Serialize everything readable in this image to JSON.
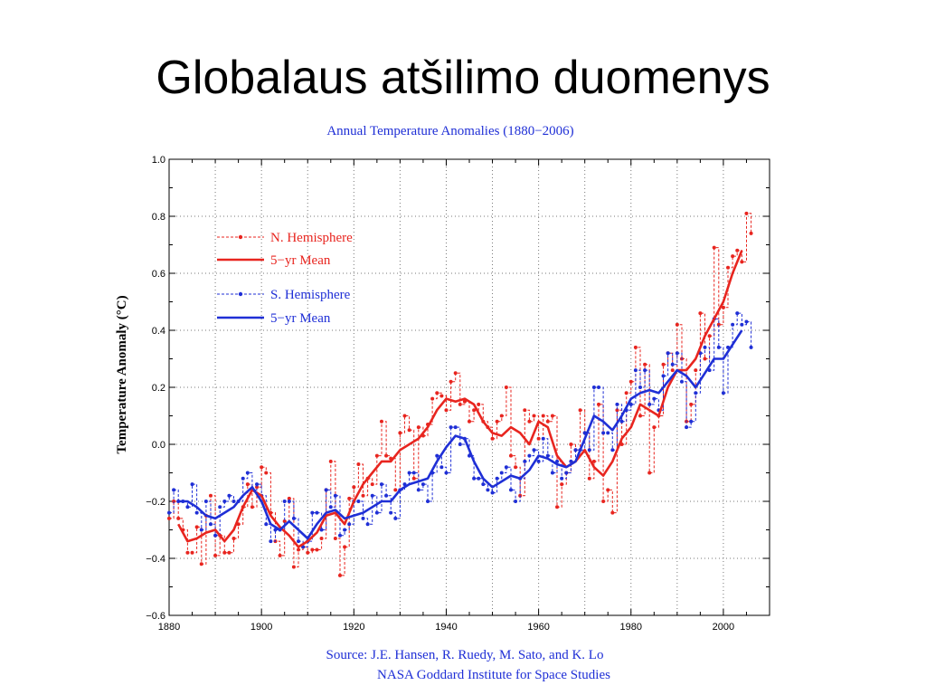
{
  "slide": {
    "title": "Globalaus atšilimo duomenys"
  },
  "chart_data": {
    "type": "line",
    "title": "Annual Temperature Anomalies (1880−2006)",
    "xlabel": "",
    "ylabel": "Temperature Anomaly (°C)",
    "xlim": [
      1880,
      2010
    ],
    "ylim": [
      -0.6,
      1.0
    ],
    "x_ticks": [
      1880,
      1900,
      1920,
      1940,
      1960,
      1980,
      2000
    ],
    "y_ticks": [
      -0.6,
      -0.4,
      -0.2,
      0.0,
      0.2,
      0.4,
      0.6,
      0.8,
      1.0
    ],
    "y_tick_labels": [
      "−0.6",
      "−0.4",
      "−0.2",
      "0.0",
      "0.2",
      "0.4",
      "0.6",
      "0.8",
      "1.0"
    ],
    "x_tick_labels": [
      "1880",
      "1900",
      "1920",
      "1940",
      "1960",
      "1980",
      "2000"
    ],
    "grid": true,
    "legend_position": "top-left",
    "colors": {
      "north": "#e8251f",
      "south": "#1f2fd6"
    },
    "source_line1": "Source: J.E. Hansen, R. Ruedy, M. Sato, and K. Lo",
    "source_line2": "NASA Goddard Institute for Space Studies",
    "series": [
      {
        "name": "N. Hemisphere",
        "style": "dashed-dots",
        "color": "#e8251f",
        "x": [
          1880,
          1881,
          1882,
          1883,
          1884,
          1885,
          1886,
          1887,
          1888,
          1889,
          1890,
          1891,
          1892,
          1893,
          1894,
          1895,
          1896,
          1897,
          1898,
          1899,
          1900,
          1901,
          1902,
          1903,
          1904,
          1905,
          1906,
          1907,
          1908,
          1909,
          1910,
          1911,
          1912,
          1913,
          1914,
          1915,
          1916,
          1917,
          1918,
          1919,
          1920,
          1921,
          1922,
          1923,
          1924,
          1925,
          1926,
          1927,
          1928,
          1929,
          1930,
          1931,
          1932,
          1933,
          1934,
          1935,
          1936,
          1937,
          1938,
          1939,
          1940,
          1941,
          1942,
          1943,
          1944,
          1945,
          1946,
          1947,
          1948,
          1949,
          1950,
          1951,
          1952,
          1953,
          1954,
          1955,
          1956,
          1957,
          1958,
          1959,
          1960,
          1961,
          1962,
          1963,
          1964,
          1965,
          1966,
          1967,
          1968,
          1969,
          1970,
          1971,
          1972,
          1973,
          1974,
          1975,
          1976,
          1977,
          1978,
          1979,
          1980,
          1981,
          1982,
          1983,
          1984,
          1985,
          1986,
          1987,
          1988,
          1989,
          1990,
          1991,
          1992,
          1993,
          1994,
          1995,
          1996,
          1997,
          1998,
          1999,
          2000,
          2001,
          2002,
          2003,
          2004,
          2005,
          2006
        ],
        "values": [
          -0.26,
          -0.2,
          -0.26,
          -0.3,
          -0.38,
          -0.38,
          -0.29,
          -0.42,
          -0.25,
          -0.18,
          -0.39,
          -0.32,
          -0.38,
          -0.38,
          -0.33,
          -0.28,
          -0.22,
          -0.14,
          -0.22,
          -0.15,
          -0.08,
          -0.1,
          -0.24,
          -0.34,
          -0.39,
          -0.27,
          -0.19,
          -0.43,
          -0.37,
          -0.36,
          -0.38,
          -0.37,
          -0.37,
          -0.33,
          -0.16,
          -0.06,
          -0.33,
          -0.46,
          -0.36,
          -0.19,
          -0.15,
          -0.07,
          -0.18,
          -0.12,
          -0.14,
          -0.04,
          0.08,
          -0.04,
          -0.05,
          -0.16,
          0.04,
          0.1,
          0.05,
          -0.12,
          0.06,
          0.03,
          0.07,
          0.16,
          0.18,
          0.17,
          0.12,
          0.22,
          0.25,
          0.14,
          0.15,
          0.08,
          0.12,
          0.14,
          0.08,
          0.06,
          0.02,
          0.08,
          0.1,
          0.2,
          -0.04,
          -0.08,
          -0.18,
          0.12,
          0.08,
          0.1,
          0.02,
          0.1,
          0.08,
          0.1,
          -0.22,
          -0.14,
          -0.1,
          0.0,
          -0.02,
          0.12,
          0.04,
          -0.12,
          -0.06,
          0.14,
          -0.2,
          -0.16,
          -0.24,
          0.12,
          0.0,
          0.18,
          0.22,
          0.34,
          0.1,
          0.28,
          -0.1,
          0.06,
          0.1,
          0.28,
          0.32,
          0.26,
          0.42,
          0.3,
          0.08,
          0.14,
          0.26,
          0.46,
          0.3,
          0.38,
          0.69,
          0.42,
          0.48,
          0.62,
          0.66,
          0.68,
          0.64,
          0.81,
          0.74
        ]
      },
      {
        "name": "5−yr Mean",
        "style": "solid",
        "color": "#e8251f",
        "x": [
          1882,
          1884,
          1886,
          1888,
          1890,
          1892,
          1894,
          1896,
          1898,
          1900,
          1902,
          1904,
          1906,
          1908,
          1910,
          1912,
          1914,
          1916,
          1918,
          1920,
          1922,
          1924,
          1926,
          1928,
          1930,
          1932,
          1934,
          1936,
          1938,
          1940,
          1942,
          1944,
          1946,
          1948,
          1950,
          1952,
          1954,
          1956,
          1958,
          1960,
          1962,
          1964,
          1966,
          1968,
          1970,
          1972,
          1974,
          1976,
          1978,
          1980,
          1982,
          1984,
          1986,
          1988,
          1990,
          1992,
          1994,
          1996,
          1998,
          2000,
          2002,
          2004
        ],
        "values": [
          -0.28,
          -0.34,
          -0.33,
          -0.31,
          -0.3,
          -0.34,
          -0.3,
          -0.22,
          -0.16,
          -0.18,
          -0.25,
          -0.29,
          -0.32,
          -0.36,
          -0.34,
          -0.31,
          -0.25,
          -0.24,
          -0.28,
          -0.2,
          -0.14,
          -0.1,
          -0.06,
          -0.06,
          -0.02,
          -0.0,
          0.02,
          0.06,
          0.12,
          0.16,
          0.15,
          0.16,
          0.14,
          0.08,
          0.04,
          0.03,
          0.06,
          0.04,
          0.0,
          0.08,
          0.06,
          -0.04,
          -0.08,
          -0.06,
          -0.02,
          -0.08,
          -0.11,
          -0.06,
          0.02,
          0.06,
          0.14,
          0.12,
          0.1,
          0.2,
          0.26,
          0.26,
          0.3,
          0.38,
          0.44,
          0.5,
          0.6,
          0.68
        ]
      },
      {
        "name": "S. Hemisphere",
        "style": "dashed-dots",
        "color": "#1f2fd6",
        "x": [
          1880,
          1881,
          1882,
          1883,
          1884,
          1885,
          1886,
          1887,
          1888,
          1889,
          1890,
          1891,
          1892,
          1893,
          1894,
          1895,
          1896,
          1897,
          1898,
          1899,
          1900,
          1901,
          1902,
          1903,
          1904,
          1905,
          1906,
          1907,
          1908,
          1909,
          1910,
          1911,
          1912,
          1913,
          1914,
          1915,
          1916,
          1917,
          1918,
          1919,
          1920,
          1921,
          1922,
          1923,
          1924,
          1925,
          1926,
          1927,
          1928,
          1929,
          1930,
          1931,
          1932,
          1933,
          1934,
          1935,
          1936,
          1937,
          1938,
          1939,
          1940,
          1941,
          1942,
          1943,
          1944,
          1945,
          1946,
          1947,
          1948,
          1949,
          1950,
          1951,
          1952,
          1953,
          1954,
          1955,
          1956,
          1957,
          1958,
          1959,
          1960,
          1961,
          1962,
          1963,
          1964,
          1965,
          1966,
          1967,
          1968,
          1969,
          1970,
          1971,
          1972,
          1973,
          1974,
          1975,
          1976,
          1977,
          1978,
          1979,
          1980,
          1981,
          1982,
          1983,
          1984,
          1985,
          1986,
          1987,
          1988,
          1989,
          1990,
          1991,
          1992,
          1993,
          1994,
          1995,
          1996,
          1997,
          1998,
          1999,
          2000,
          2001,
          2002,
          2003,
          2004,
          2005,
          2006
        ],
        "values": [
          -0.24,
          -0.16,
          -0.2,
          -0.2,
          -0.22,
          -0.14,
          -0.24,
          -0.3,
          -0.2,
          -0.28,
          -0.32,
          -0.22,
          -0.2,
          -0.18,
          -0.2,
          -0.2,
          -0.12,
          -0.1,
          -0.16,
          -0.14,
          -0.18,
          -0.28,
          -0.34,
          -0.3,
          -0.3,
          -0.2,
          -0.2,
          -0.26,
          -0.34,
          -0.36,
          -0.34,
          -0.24,
          -0.24,
          -0.3,
          -0.16,
          -0.22,
          -0.18,
          -0.32,
          -0.3,
          -0.28,
          -0.2,
          -0.2,
          -0.26,
          -0.28,
          -0.18,
          -0.24,
          -0.14,
          -0.18,
          -0.24,
          -0.26,
          -0.16,
          -0.14,
          -0.1,
          -0.1,
          -0.16,
          -0.14,
          -0.2,
          -0.1,
          -0.04,
          -0.08,
          -0.1,
          0.06,
          0.06,
          0.0,
          0.02,
          -0.04,
          -0.12,
          -0.12,
          -0.14,
          -0.16,
          -0.17,
          -0.12,
          -0.1,
          -0.08,
          -0.16,
          -0.2,
          -0.12,
          -0.06,
          -0.04,
          -0.02,
          -0.06,
          0.02,
          -0.04,
          -0.1,
          -0.06,
          -0.12,
          -0.1,
          -0.06,
          -0.02,
          -0.02,
          0.04,
          -0.02,
          0.2,
          0.2,
          0.04,
          0.04,
          -0.02,
          0.14,
          0.08,
          0.12,
          0.14,
          0.26,
          0.2,
          0.26,
          0.14,
          0.16,
          0.12,
          0.24,
          0.32,
          0.28,
          0.32,
          0.22,
          0.06,
          0.08,
          0.18,
          0.32,
          0.34,
          0.26,
          0.44,
          0.34,
          0.18,
          0.34,
          0.42,
          0.46,
          0.42,
          0.43,
          0.34
        ]
      },
      {
        "name": "5−yr Mean",
        "style": "solid",
        "color": "#1f2fd6",
        "x": [
          1882,
          1884,
          1886,
          1888,
          1890,
          1892,
          1894,
          1896,
          1898,
          1900,
          1902,
          1904,
          1906,
          1908,
          1910,
          1912,
          1914,
          1916,
          1918,
          1920,
          1922,
          1924,
          1926,
          1928,
          1930,
          1932,
          1934,
          1936,
          1938,
          1940,
          1942,
          1944,
          1946,
          1948,
          1950,
          1952,
          1954,
          1956,
          1958,
          1960,
          1962,
          1964,
          1966,
          1968,
          1970,
          1972,
          1974,
          1976,
          1978,
          1980,
          1982,
          1984,
          1986,
          1988,
          1990,
          1992,
          1994,
          1996,
          1998,
          2000,
          2002,
          2004
        ],
        "values": [
          -0.2,
          -0.2,
          -0.22,
          -0.25,
          -0.26,
          -0.24,
          -0.22,
          -0.18,
          -0.15,
          -0.2,
          -0.28,
          -0.3,
          -0.27,
          -0.3,
          -0.33,
          -0.28,
          -0.24,
          -0.23,
          -0.26,
          -0.25,
          -0.24,
          -0.22,
          -0.2,
          -0.2,
          -0.16,
          -0.14,
          -0.13,
          -0.12,
          -0.06,
          -0.01,
          0.03,
          0.02,
          -0.06,
          -0.12,
          -0.15,
          -0.13,
          -0.11,
          -0.12,
          -0.09,
          -0.04,
          -0.05,
          -0.07,
          -0.08,
          -0.06,
          0.02,
          0.1,
          0.08,
          0.05,
          0.1,
          0.16,
          0.18,
          0.19,
          0.18,
          0.22,
          0.26,
          0.24,
          0.2,
          0.25,
          0.3,
          0.3,
          0.35,
          0.4
        ]
      }
    ]
  }
}
